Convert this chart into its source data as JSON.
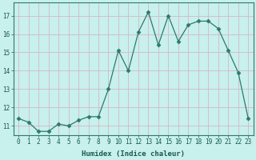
{
  "x": [
    0,
    1,
    2,
    3,
    4,
    5,
    6,
    7,
    8,
    9,
    10,
    11,
    12,
    13,
    14,
    15,
    16,
    17,
    18,
    19,
    20,
    21,
    22,
    23
  ],
  "y": [
    11.4,
    11.2,
    10.7,
    10.7,
    11.1,
    11.0,
    11.3,
    11.5,
    11.5,
    13.0,
    15.1,
    14.0,
    16.1,
    17.2,
    15.4,
    17.0,
    15.6,
    16.5,
    16.7,
    16.7,
    16.3,
    15.1,
    13.9,
    11.4
  ],
  "line_color": "#2d7a6a",
  "marker": "D",
  "markersize": 2.5,
  "bg_color": "#c8f0ec",
  "grid_color": "#d4b8c0",
  "xlabel": "Humidex (Indice chaleur)",
  "ylim": [
    10.5,
    17.7
  ],
  "yticks": [
    11,
    12,
    13,
    14,
    15,
    16,
    17
  ],
  "xticks": [
    0,
    1,
    2,
    3,
    4,
    5,
    6,
    7,
    8,
    9,
    10,
    11,
    12,
    13,
    14,
    15,
    16,
    17,
    18,
    19,
    20,
    21,
    22,
    23
  ],
  "tick_fontsize": 5.5,
  "xlabel_fontsize": 6.5
}
